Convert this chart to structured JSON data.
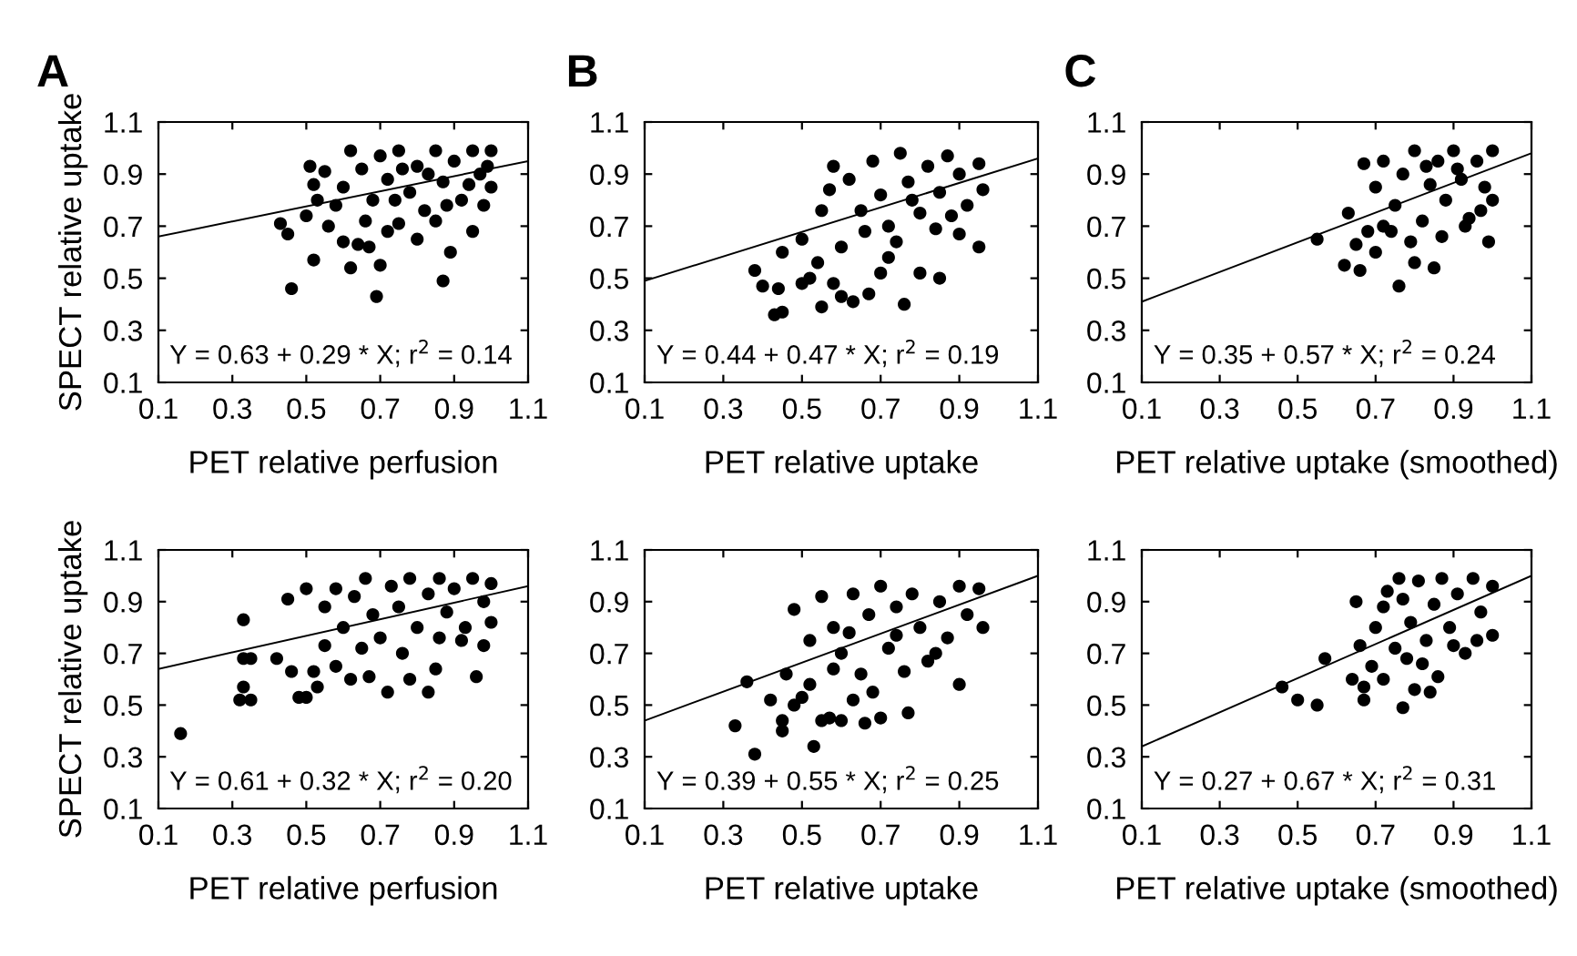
{
  "chart_data": [
    {
      "type": "scatter",
      "title": "A",
      "xlabel": "PET relative perfusion",
      "ylabel": "SPECT relative uptake",
      "xlim": [
        0.1,
        1.1
      ],
      "ylim": [
        0.1,
        1.1
      ],
      "xticks": [
        0.1,
        0.3,
        0.5,
        0.7,
        0.9,
        1.1
      ],
      "yticks": [
        0.1,
        0.3,
        0.5,
        0.7,
        0.9,
        1.1
      ],
      "annotations": [
        "Y = 0.63 + 0.29 * X; r$^{2}$ = 0.14"
      ],
      "series": [
        {
          "marker": "circle",
          "color": "#000000",
          "x": [
            0.46,
            0.69,
            0.87,
            0.52,
            0.62,
            0.7,
            0.89,
            0.95,
            0.43,
            0.45,
            0.5,
            0.52,
            0.51,
            0.55,
            0.53,
            0.56,
            0.6,
            0.64,
            0.67,
            0.72,
            0.75,
            0.8,
            0.85,
            0.98,
            0.6,
            0.62,
            0.65,
            0.68,
            0.7,
            0.72,
            0.75,
            0.78,
            0.8,
            0.82,
            0.85,
            0.87,
            0.9,
            0.92,
            0.95,
            0.97,
            1.0,
            1.0,
            0.58,
            0.66,
            0.76,
            0.88,
            0.94,
            0.99,
            0.74,
            0.83
          ],
          "values": [
            0.46,
            0.43,
            0.49,
            0.57,
            0.54,
            0.55,
            0.6,
            0.68,
            0.71,
            0.67,
            0.74,
            0.86,
            0.93,
            0.91,
            0.8,
            0.7,
            0.64,
            0.63,
            0.62,
            0.68,
            0.71,
            0.65,
            0.72,
            0.78,
            0.85,
            0.99,
            0.92,
            0.8,
            0.97,
            0.88,
            0.99,
            0.83,
            0.93,
            0.76,
            0.99,
            0.87,
            0.95,
            0.8,
            0.99,
            0.9,
            0.99,
            0.85,
            0.78,
            0.72,
            0.92,
            0.78,
            0.86,
            0.93,
            0.8,
            0.9
          ]
        },
        {
          "type": "line",
          "color": "#000000",
          "x": [
            0.1,
            1.1
          ],
          "values": [
            0.66,
            0.95
          ]
        }
      ]
    },
    {
      "type": "scatter",
      "title": "B",
      "xlabel": "PET relative uptake",
      "xlim": [
        0.1,
        1.1
      ],
      "ylim": [
        0.1,
        1.1
      ],
      "xticks": [
        0.1,
        0.3,
        0.5,
        0.7,
        0.9,
        1.1
      ],
      "yticks": [
        0.1,
        0.3,
        0.5,
        0.7,
        0.9,
        1.1
      ],
      "annotations": [
        "Y = 0.44 + 0.47 * X; r$^{2}$ = 0.19"
      ],
      "series": [
        {
          "marker": "circle",
          "color": "#000000",
          "x": [
            0.43,
            0.45,
            0.55,
            0.6,
            0.63,
            0.67,
            0.76,
            0.38,
            0.4,
            0.44,
            0.5,
            0.52,
            0.54,
            0.58,
            0.45,
            0.5,
            0.55,
            0.7,
            0.72,
            0.8,
            0.85,
            0.95,
            0.9,
            0.6,
            0.58,
            0.62,
            0.65,
            0.68,
            0.7,
            0.72,
            0.75,
            0.77,
            0.8,
            0.82,
            0.85,
            0.87,
            0.9,
            0.92,
            0.95,
            0.96,
            0.66,
            0.74,
            0.84,
            0.57,
            0.78,
            0.88
          ],
          "values": [
            0.36,
            0.37,
            0.39,
            0.43,
            0.41,
            0.44,
            0.4,
            0.53,
            0.47,
            0.46,
            0.48,
            0.5,
            0.56,
            0.48,
            0.6,
            0.65,
            0.76,
            0.52,
            0.58,
            0.52,
            0.5,
            0.62,
            0.67,
            0.62,
            0.93,
            0.88,
            0.76,
            0.95,
            0.82,
            0.7,
            0.98,
            0.87,
            0.75,
            0.93,
            0.83,
            0.97,
            0.9,
            0.78,
            0.94,
            0.84,
            0.68,
            0.64,
            0.69,
            0.84,
            0.8,
            0.74
          ]
        },
        {
          "type": "line",
          "color": "#000000",
          "x": [
            0.1,
            1.1
          ],
          "values": [
            0.49,
            0.96
          ]
        }
      ]
    },
    {
      "type": "scatter",
      "title": "C",
      "xlabel": "PET relative uptake (smoothed)",
      "xlim": [
        0.1,
        1.1
      ],
      "ylim": [
        0.1,
        1.1
      ],
      "xticks": [
        0.1,
        0.3,
        0.5,
        0.7,
        0.9,
        1.1
      ],
      "yticks": [
        0.1,
        0.3,
        0.5,
        0.7,
        0.9,
        1.1
      ],
      "annotations": [
        "Y = 0.35 + 0.57 * X; r$^{2}$ = 0.24"
      ],
      "series": [
        {
          "marker": "circle",
          "color": "#000000",
          "x": [
            0.55,
            0.62,
            0.63,
            0.66,
            0.67,
            0.76,
            0.8,
            0.85,
            0.99,
            0.65,
            0.7,
            0.72,
            0.68,
            0.7,
            0.72,
            0.75,
            0.77,
            0.8,
            0.82,
            0.84,
            0.86,
            0.88,
            0.9,
            0.92,
            0.94,
            0.96,
            0.98,
            1.0,
            1.0,
            0.79,
            0.87,
            0.93,
            0.74,
            0.97,
            0.83,
            0.91
          ],
          "values": [
            0.65,
            0.55,
            0.75,
            0.53,
            0.94,
            0.47,
            0.56,
            0.54,
            0.64,
            0.63,
            0.6,
            0.7,
            0.68,
            0.85,
            0.95,
            0.78,
            0.9,
            0.99,
            0.72,
            0.86,
            0.95,
            0.8,
            0.99,
            0.88,
            0.73,
            0.95,
            0.85,
            0.99,
            0.8,
            0.64,
            0.66,
            0.7,
            0.68,
            0.76,
            0.93,
            0.92
          ]
        },
        {
          "type": "line",
          "color": "#000000",
          "x": [
            0.1,
            1.1
          ],
          "values": [
            0.41,
            0.98
          ]
        }
      ]
    },
    {
      "type": "scatter",
      "xlabel": "PET relative perfusion",
      "ylabel": "SPECT relative uptake",
      "xlim": [
        0.1,
        1.1
      ],
      "ylim": [
        0.1,
        1.1
      ],
      "xticks": [
        0.1,
        0.3,
        0.5,
        0.7,
        0.9,
        1.1
      ],
      "yticks": [
        0.1,
        0.3,
        0.5,
        0.7,
        0.9,
        1.1
      ],
      "annotations": [
        "Y = 0.61 + 0.32 * X; r$^{2}$ = 0.20"
      ],
      "series": [
        {
          "marker": "circle",
          "color": "#000000",
          "x": [
            0.16,
            0.33,
            0.33,
            0.35,
            0.33,
            0.32,
            0.35,
            0.42,
            0.45,
            0.46,
            0.48,
            0.5,
            0.52,
            0.53,
            0.5,
            0.55,
            0.58,
            0.62,
            0.67,
            0.72,
            0.78,
            0.83,
            0.85,
            0.96,
            0.92,
            0.98,
            0.55,
            0.58,
            0.6,
            0.63,
            0.66,
            0.68,
            0.7,
            0.73,
            0.75,
            0.78,
            0.8,
            0.83,
            0.86,
            0.88,
            0.9,
            0.93,
            0.95,
            0.98,
            1.0,
            1.0,
            0.65,
            0.76,
            0.86
          ],
          "values": [
            0.39,
            0.83,
            0.68,
            0.68,
            0.57,
            0.52,
            0.52,
            0.68,
            0.91,
            0.63,
            0.53,
            0.53,
            0.63,
            0.57,
            0.95,
            0.73,
            0.65,
            0.6,
            0.61,
            0.55,
            0.6,
            0.55,
            0.64,
            0.61,
            0.75,
            0.73,
            0.88,
            0.95,
            0.8,
            0.92,
            0.99,
            0.85,
            0.76,
            0.96,
            0.88,
            0.99,
            0.8,
            0.93,
            0.99,
            0.86,
            0.95,
            0.8,
            0.99,
            0.9,
            0.97,
            0.82,
            0.72,
            0.7,
            0.76
          ]
        },
        {
          "type": "line",
          "color": "#000000",
          "x": [
            0.1,
            1.1
          ],
          "values": [
            0.64,
            0.96
          ]
        }
      ]
    },
    {
      "type": "scatter",
      "xlabel": "PET relative uptake",
      "xlim": [
        0.1,
        1.1
      ],
      "ylim": [
        0.1,
        1.1
      ],
      "xticks": [
        0.1,
        0.3,
        0.5,
        0.7,
        0.9,
        1.1
      ],
      "yticks": [
        0.1,
        0.3,
        0.5,
        0.7,
        0.9,
        1.1
      ],
      "annotations": [
        "Y = 0.39 + 0.55 * X; r$^{2}$ = 0.25"
      ],
      "series": [
        {
          "marker": "circle",
          "color": "#000000",
          "x": [
            0.33,
            0.36,
            0.38,
            0.42,
            0.45,
            0.45,
            0.46,
            0.48,
            0.5,
            0.53,
            0.52,
            0.55,
            0.57,
            0.48,
            0.52,
            0.6,
            0.63,
            0.66,
            0.7,
            0.77,
            0.9,
            0.68,
            0.58,
            0.55,
            0.58,
            0.6,
            0.63,
            0.65,
            0.67,
            0.7,
            0.72,
            0.74,
            0.76,
            0.78,
            0.8,
            0.82,
            0.85,
            0.87,
            0.9,
            0.92,
            0.95,
            0.96,
            0.74,
            0.84,
            0.62
          ],
          "values": [
            0.42,
            0.59,
            0.31,
            0.52,
            0.4,
            0.44,
            0.62,
            0.5,
            0.53,
            0.34,
            0.58,
            0.44,
            0.45,
            0.87,
            0.75,
            0.44,
            0.52,
            0.43,
            0.45,
            0.47,
            0.58,
            0.55,
            0.64,
            0.92,
            0.8,
            0.7,
            0.93,
            0.62,
            0.85,
            0.96,
            0.72,
            0.88,
            0.63,
            0.93,
            0.8,
            0.67,
            0.9,
            0.76,
            0.96,
            0.85,
            0.95,
            0.8,
            0.77,
            0.7,
            0.78
          ]
        },
        {
          "type": "line",
          "color": "#000000",
          "x": [
            0.1,
            1.1
          ],
          "values": [
            0.44,
            1.0
          ]
        }
      ]
    },
    {
      "type": "scatter",
      "xlabel": "PET relative uptake (smoothed)",
      "xlim": [
        0.1,
        1.1
      ],
      "ylim": [
        0.1,
        1.1
      ],
      "xticks": [
        0.1,
        0.3,
        0.5,
        0.7,
        0.9,
        1.1
      ],
      "yticks": [
        0.1,
        0.3,
        0.5,
        0.7,
        0.9,
        1.1
      ],
      "annotations": [
        "Y = 0.27 + 0.67 * X; r$^{2}$ = 0.31"
      ],
      "series": [
        {
          "marker": "circle",
          "color": "#000000",
          "x": [
            0.46,
            0.5,
            0.55,
            0.57,
            0.64,
            0.65,
            0.67,
            0.67,
            0.66,
            0.69,
            0.72,
            0.77,
            0.8,
            0.84,
            0.86,
            0.76,
            0.73,
            0.7,
            0.72,
            0.75,
            0.77,
            0.79,
            0.81,
            0.83,
            0.85,
            0.87,
            0.89,
            0.91,
            0.93,
            0.95,
            0.97,
            1.0,
            1.0,
            0.82,
            0.9,
            0.78,
            0.96
          ],
          "values": [
            0.57,
            0.52,
            0.5,
            0.68,
            0.6,
            0.9,
            0.57,
            0.52,
            0.73,
            0.65,
            0.6,
            0.49,
            0.56,
            0.55,
            0.61,
            0.99,
            0.94,
            0.8,
            0.88,
            0.72,
            0.91,
            0.82,
            0.98,
            0.75,
            0.89,
            0.99,
            0.8,
            0.93,
            0.7,
            0.99,
            0.86,
            0.96,
            0.77,
            0.66,
            0.73,
            0.68,
            0.75
          ]
        },
        {
          "type": "line",
          "color": "#000000",
          "x": [
            0.1,
            1.1
          ],
          "values": [
            0.34,
            1.0
          ]
        }
      ]
    }
  ]
}
